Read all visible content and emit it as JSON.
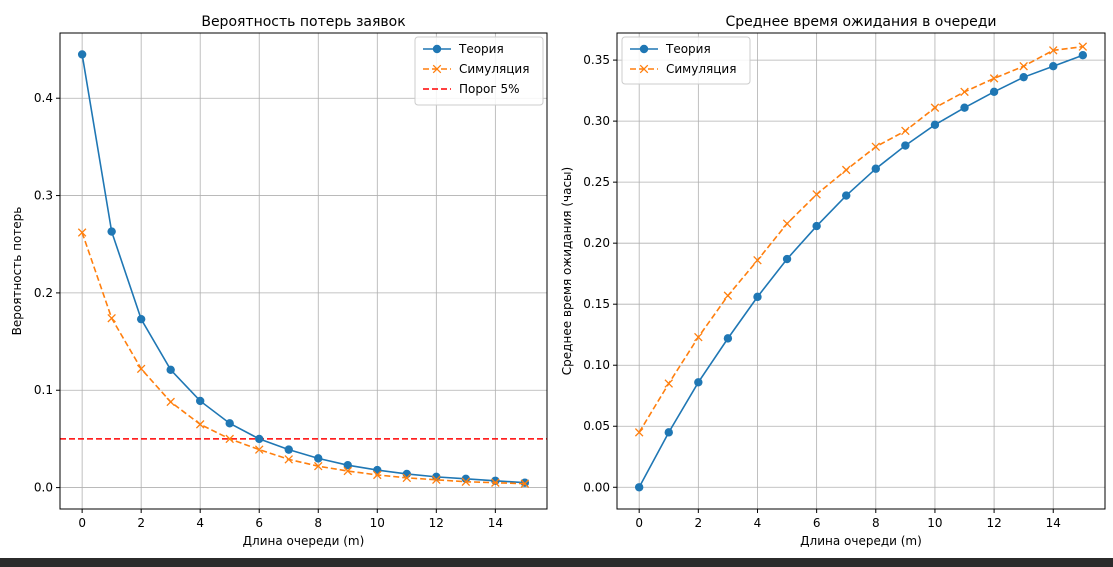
{
  "chart_data": [
    {
      "type": "line",
      "title": "Вероятность потерь заявок",
      "xlabel": "Длина очереди (m)",
      "ylabel": "Вероятность потерь",
      "xlim": [
        -0.75,
        15.75
      ],
      "ylim": [
        -0.022,
        0.467
      ],
      "xticks": [
        0,
        2,
        4,
        6,
        8,
        10,
        12,
        14
      ],
      "yticks": [
        0.0,
        0.1,
        0.2,
        0.3,
        0.4
      ],
      "ytick_labels": [
        "0.0",
        "0.1",
        "0.2",
        "0.3",
        "0.4"
      ],
      "grid": true,
      "legend_position": "top-right",
      "x": [
        0,
        1,
        2,
        3,
        4,
        5,
        6,
        7,
        8,
        9,
        10,
        11,
        12,
        13,
        14,
        15
      ],
      "series": [
        {
          "name": "Теория",
          "style": "solid",
          "marker": "circle",
          "color": "#1f77b4",
          "values": [
            0.445,
            0.263,
            0.173,
            0.121,
            0.089,
            0.066,
            0.05,
            0.039,
            0.03,
            0.023,
            0.018,
            0.014,
            0.011,
            0.009,
            0.007,
            0.005
          ]
        },
        {
          "name": "Симуляция",
          "style": "dashed",
          "marker": "x",
          "color": "#ff7f0e",
          "values": [
            0.262,
            0.174,
            0.122,
            0.088,
            0.065,
            0.05,
            0.039,
            0.029,
            0.022,
            0.017,
            0.013,
            0.01,
            0.008,
            0.006,
            0.005,
            0.004
          ]
        }
      ],
      "hlines": [
        {
          "name": "Порог 5%",
          "y": 0.05,
          "style": "dashed",
          "color": "#ff0000"
        }
      ]
    },
    {
      "type": "line",
      "title": "Среднее время ожидания в очереди",
      "xlabel": "Длина очереди (m)",
      "ylabel": "Среднее время ожидания (часы)",
      "xlim": [
        -0.75,
        15.75
      ],
      "ylim": [
        -0.0178,
        0.3722
      ],
      "xticks": [
        0,
        2,
        4,
        6,
        8,
        10,
        12,
        14
      ],
      "yticks": [
        0.0,
        0.05,
        0.1,
        0.15,
        0.2,
        0.25,
        0.3,
        0.35
      ],
      "ytick_labels": [
        "0.00",
        "0.05",
        "0.10",
        "0.15",
        "0.20",
        "0.25",
        "0.30",
        "0.35"
      ],
      "grid": true,
      "legend_position": "top-left",
      "x": [
        0,
        1,
        2,
        3,
        4,
        5,
        6,
        7,
        8,
        9,
        10,
        11,
        12,
        13,
        14,
        15
      ],
      "series": [
        {
          "name": "Теория",
          "style": "solid",
          "marker": "circle",
          "color": "#1f77b4",
          "values": [
            0.0,
            0.045,
            0.086,
            0.122,
            0.156,
            0.187,
            0.214,
            0.239,
            0.261,
            0.28,
            0.297,
            0.311,
            0.324,
            0.336,
            0.345,
            0.354
          ]
        },
        {
          "name": "Симуляция",
          "style": "dashed",
          "marker": "x",
          "color": "#ff7f0e",
          "values": [
            0.045,
            0.085,
            0.123,
            0.157,
            0.186,
            0.216,
            0.24,
            0.26,
            0.279,
            0.292,
            0.311,
            0.324,
            0.335,
            0.345,
            0.358,
            0.361
          ]
        }
      ],
      "hlines": []
    }
  ]
}
